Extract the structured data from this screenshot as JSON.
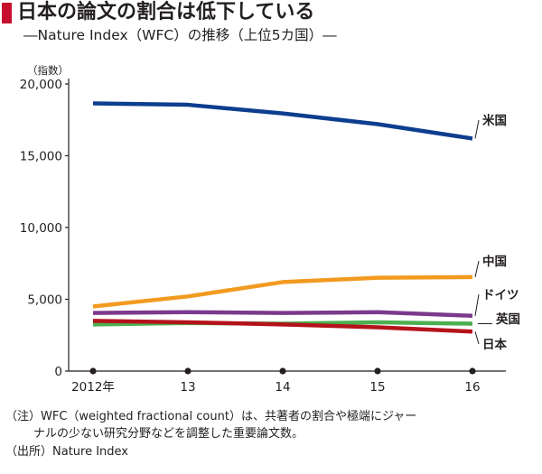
{
  "title": "日本の論文の割合は低下している",
  "subtitle": "―Nature Index（WFC）の推移（上位5カ国）―",
  "notes": {
    "line1": "（注）WFC（weighted fractional count）は、共著者の割合や極端にジャー",
    "line2": "ナルの少ない研究分野などを調整した重要論文数。",
    "line3": "（出所）Nature Index"
  },
  "colors": {
    "accent": "#c8102e"
  },
  "chart_data": {
    "type": "line",
    "title": "日本の論文の割合は低下している",
    "subtitle": "―Nature Index（WFC）の推移（上位5カ国）―",
    "ylabel": "（指数）",
    "xlabel": "",
    "x": [
      2012,
      2013,
      2014,
      2015,
      2016
    ],
    "x_tick_labels": [
      "2012年",
      "13",
      "14",
      "15",
      "16"
    ],
    "y_tick_labels": [
      "0",
      "5,000",
      "10,000",
      "15,000",
      "20,000"
    ],
    "y_ticks": [
      0,
      5000,
      10000,
      15000,
      20000
    ],
    "ylim": [
      0,
      20000
    ],
    "grid": false,
    "series": [
      {
        "name": "米国",
        "color": "#0d3e8f",
        "values": [
          18650,
          18550,
          17950,
          17200,
          16200
        ]
      },
      {
        "name": "中国",
        "color": "#f29a1f",
        "values": [
          4500,
          5200,
          6200,
          6500,
          6550
        ]
      },
      {
        "name": "ドイツ",
        "color": "#7b3a8c",
        "values": [
          4050,
          4100,
          4050,
          4100,
          3850
        ]
      },
      {
        "name": "英国",
        "color": "#4caf50",
        "values": [
          3250,
          3350,
          3300,
          3400,
          3300
        ]
      },
      {
        "name": "日本",
        "color": "#b5121b",
        "values": [
          3500,
          3400,
          3250,
          3050,
          2750
        ]
      }
    ]
  }
}
